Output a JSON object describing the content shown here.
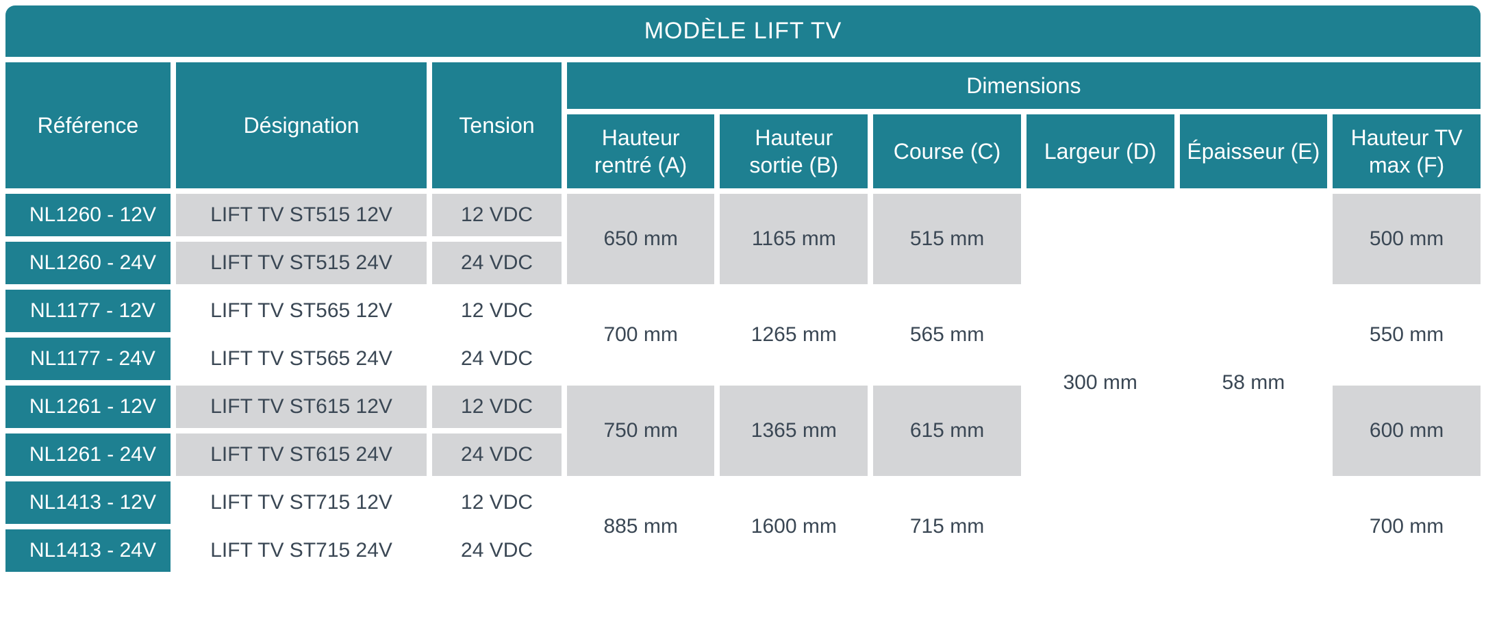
{
  "colors": {
    "teal": "#1e8091",
    "grey": "#d4d5d7",
    "white": "#ffffff",
    "dark": "#3a4754"
  },
  "title": "MODÈLE LIFT TV",
  "headers": {
    "reference": "Référence",
    "designation": "Désignation",
    "tension": "Tension",
    "dimensions": "Dimensions",
    "hauteur_rentre": "Hauteur rentré (A)",
    "hauteur_sortie": "Hauteur sortie (B)",
    "course": "Course (C)",
    "largeur": "Largeur (D)",
    "epaisseur": "Épaisseur (E)",
    "hauteur_tv_max": "Hauteur TV max (F)"
  },
  "shared": {
    "largeur": "300 mm",
    "epaisseur": "58 mm"
  },
  "groups": [
    {
      "rows": [
        {
          "ref": "NL1260 - 12V",
          "des": "LIFT TV ST515 12V",
          "ten": "12 VDC"
        },
        {
          "ref": "NL1260 - 24V",
          "des": "LIFT TV ST515 24V",
          "ten": "24 VDC"
        }
      ],
      "hauteur_rentre": "650 mm",
      "hauteur_sortie": "1165 mm",
      "course": "515 mm",
      "hauteur_tv_max": "500 mm",
      "shade": "grey"
    },
    {
      "rows": [
        {
          "ref": "NL1177 - 12V",
          "des": "LIFT TV ST565 12V",
          "ten": "12 VDC"
        },
        {
          "ref": "NL1177 - 24V",
          "des": "LIFT TV ST565 24V",
          "ten": "24 VDC"
        }
      ],
      "hauteur_rentre": "700 mm",
      "hauteur_sortie": "1265 mm",
      "course": "565 mm",
      "hauteur_tv_max": "550 mm",
      "shade": "white"
    },
    {
      "rows": [
        {
          "ref": "NL1261 - 12V",
          "des": "LIFT TV ST615 12V",
          "ten": "12 VDC"
        },
        {
          "ref": "NL1261 - 24V",
          "des": "LIFT TV ST615 24V",
          "ten": "24 VDC"
        }
      ],
      "hauteur_rentre": "750 mm",
      "hauteur_sortie": "1365 mm",
      "course": "615 mm",
      "hauteur_tv_max": "600 mm",
      "shade": "grey"
    },
    {
      "rows": [
        {
          "ref": "NL1413 - 12V",
          "des": "LIFT TV ST715 12V",
          "ten": "12 VDC"
        },
        {
          "ref": "NL1413 - 24V",
          "des": "LIFT TV ST715 24V",
          "ten": "24 VDC"
        }
      ],
      "hauteur_rentre": "885 mm",
      "hauteur_sortie": "1600 mm",
      "course": "715 mm",
      "hauteur_tv_max": "700 mm",
      "shade": "white"
    }
  ]
}
